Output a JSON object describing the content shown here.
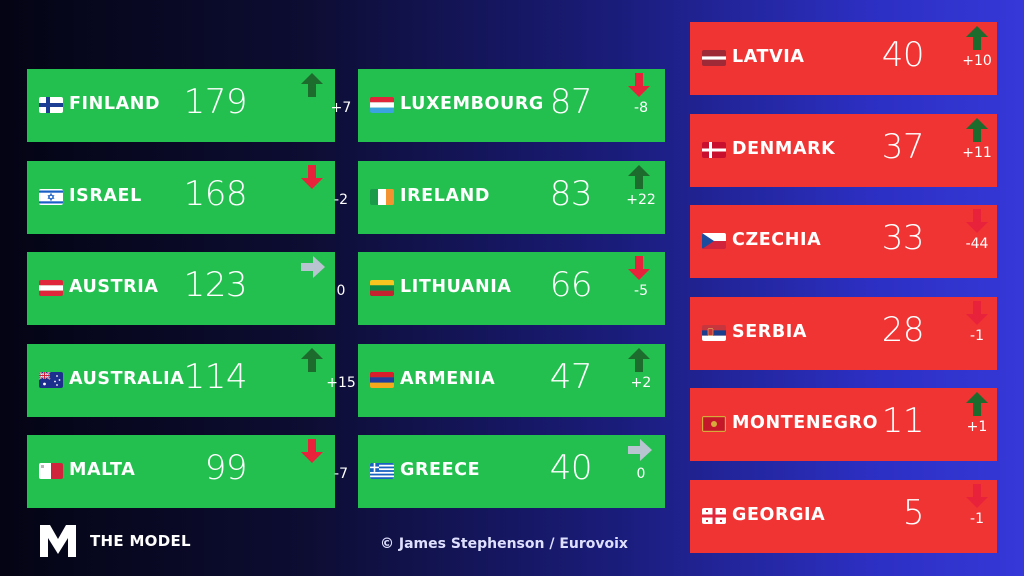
{
  "branding": {
    "logo_label": "THE MODEL",
    "credit": "© James Stephenson / Eurovoix"
  },
  "colors": {
    "card_green": "#23c04f",
    "card_red": "#f03434",
    "arrow_up": "#1e6b2e",
    "arrow_down": "#e8223a",
    "arrow_same": "#b8c4d0"
  },
  "columns": [
    {
      "card_color": "green",
      "entries": [
        {
          "country": "FINLAND",
          "flag": "finland",
          "score": "179",
          "change": "+7",
          "trend": "up"
        },
        {
          "country": "ISRAEL",
          "flag": "israel",
          "score": "168",
          "change": "-2",
          "trend": "down"
        },
        {
          "country": "AUSTRIA",
          "flag": "austria",
          "score": "123",
          "change": "0",
          "trend": "same"
        },
        {
          "country": "AUSTRALIA",
          "flag": "australia",
          "score": "114",
          "change": "+15",
          "trend": "up"
        },
        {
          "country": "MALTA",
          "flag": "malta",
          "score": "99",
          "change": "-7",
          "trend": "down"
        }
      ]
    },
    {
      "card_color": "green",
      "entries": [
        {
          "country": "LUXEMBOURG",
          "flag": "luxembourg",
          "score": "87",
          "change": "-8",
          "trend": "down"
        },
        {
          "country": "IRELAND",
          "flag": "ireland",
          "score": "83",
          "change": "+22",
          "trend": "up"
        },
        {
          "country": "LITHUANIA",
          "flag": "lithuania",
          "score": "66",
          "change": "-5",
          "trend": "down"
        },
        {
          "country": "ARMENIA",
          "flag": "armenia",
          "score": "47",
          "change": "+2",
          "trend": "up"
        },
        {
          "country": "GREECE",
          "flag": "greece",
          "score": "40",
          "change": "0",
          "trend": "same"
        }
      ]
    },
    {
      "card_color": "red",
      "entries": [
        {
          "country": "LATVIA",
          "flag": "latvia",
          "score": "40",
          "change": "+10",
          "trend": "up"
        },
        {
          "country": "DENMARK",
          "flag": "denmark",
          "score": "37",
          "change": "+11",
          "trend": "up"
        },
        {
          "country": "CZECHIA",
          "flag": "czechia",
          "score": "33",
          "change": "-44",
          "trend": "down"
        },
        {
          "country": "SERBIA",
          "flag": "serbia",
          "score": "28",
          "change": "-1",
          "trend": "down"
        },
        {
          "country": "MONTENEGRO",
          "flag": "montenegro",
          "score": "11",
          "change": "+1",
          "trend": "up"
        },
        {
          "country": "GEORGIA",
          "flag": "georgia",
          "score": "5",
          "change": "-1",
          "trend": "down"
        }
      ]
    }
  ]
}
